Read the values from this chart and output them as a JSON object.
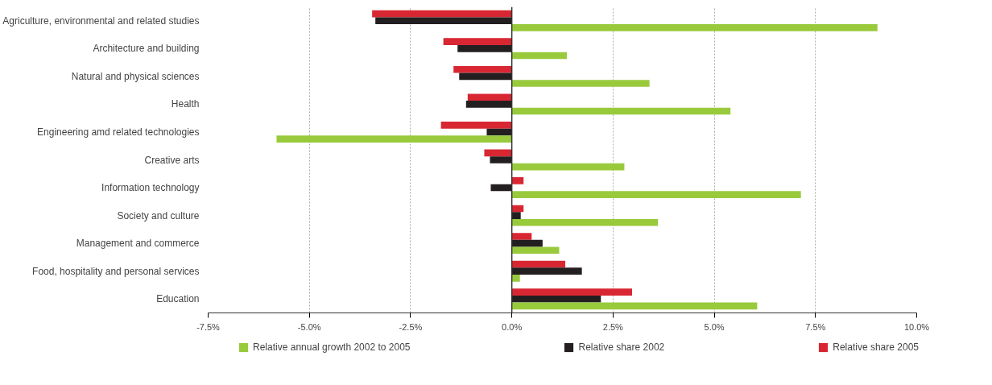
{
  "chart_data": {
    "type": "bar",
    "orientation": "horizontal",
    "categories": [
      "Agriculture, environmental and related studies",
      "Architecture and building",
      "Natural and physical sciences",
      "Health",
      "Engineering amd related technologies",
      "Creative arts",
      "Information technology",
      "Society and culture",
      "Management and commerce",
      "Food, hospitality and personal services",
      "Education"
    ],
    "series": [
      {
        "name": "Relative share 2005",
        "color": "#d82732",
        "values": [
          -3.45,
          -1.69,
          -1.44,
          -1.09,
          -1.75,
          -0.68,
          0.29,
          0.29,
          0.49,
          1.32,
          2.97
        ]
      },
      {
        "name": "Relative share 2002",
        "color": "#231f20",
        "values": [
          -3.37,
          -1.34,
          -1.3,
          -1.13,
          -0.62,
          -0.54,
          -0.52,
          0.22,
          0.76,
          1.73,
          2.2
        ]
      },
      {
        "name": "Relative annual growth 2002 to 2005",
        "color": "#99ca3c",
        "values": [
          9.03,
          1.36,
          3.4,
          5.4,
          -5.81,
          2.78,
          7.14,
          3.61,
          1.17,
          0.2,
          6.06
        ]
      }
    ],
    "xlim": [
      -7.5,
      10
    ],
    "xticks": [
      {
        "value": -7.5,
        "label": "-7.5%"
      },
      {
        "value": -5,
        "label": "-5.0%"
      },
      {
        "value": -2.5,
        "label": "-2.5%"
      },
      {
        "value": 0,
        "label": "0.0%"
      },
      {
        "value": 2.5,
        "label": "2.5%"
      },
      {
        "value": 5,
        "label": "5.0%"
      },
      {
        "value": 7.5,
        "label": "7.5%"
      },
      {
        "value": 10,
        "label": "10.0%"
      }
    ],
    "grid": "x",
    "legend": "bottom"
  }
}
